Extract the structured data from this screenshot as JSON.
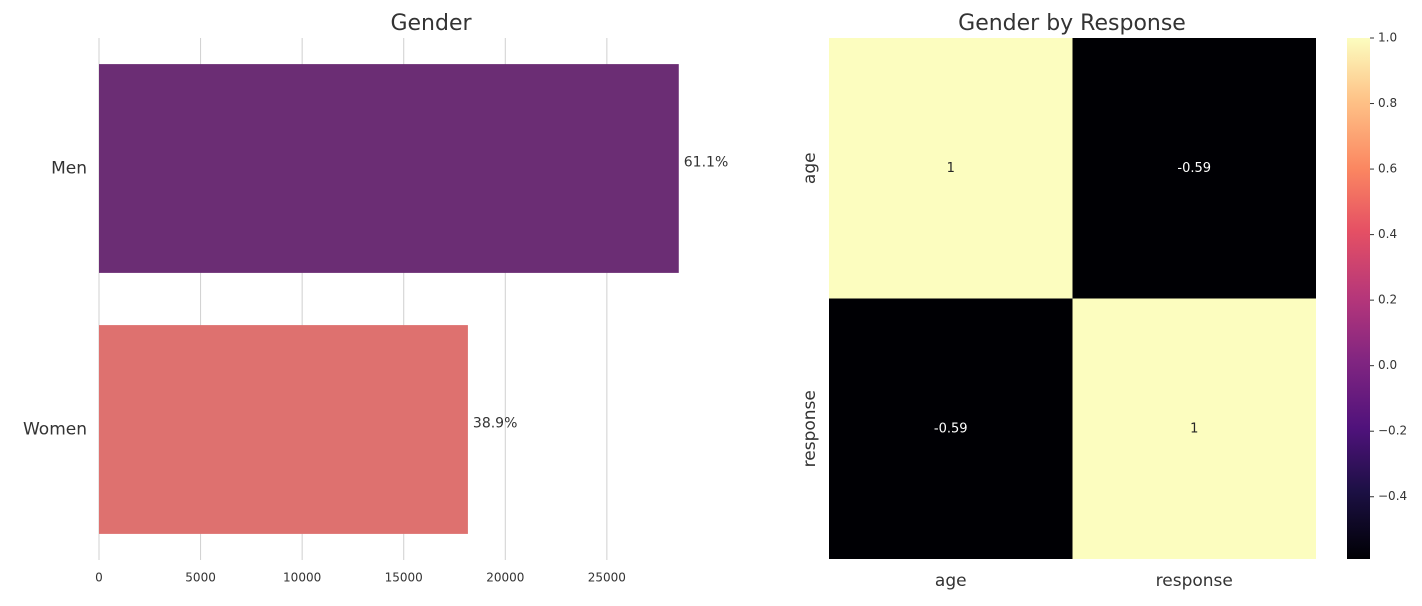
{
  "chart_data": [
    {
      "type": "barh",
      "title": "Gender",
      "categories": [
        "Men",
        "Women"
      ],
      "values": [
        28540,
        18160
      ],
      "colors": [
        "#6b2d74",
        "#de716f"
      ],
      "annotations": [
        "61.1%",
        "38.9%"
      ],
      "xlim": [
        0,
        28600
      ],
      "xticks": [
        0,
        5000,
        10000,
        15000,
        20000,
        25000
      ],
      "grid": true
    },
    {
      "type": "heatmap",
      "title": "Gender by Response",
      "x": [
        "age",
        "response"
      ],
      "y": [
        "age",
        "response"
      ],
      "values": [
        [
          1,
          -0.59
        ],
        [
          -0.59,
          1
        ]
      ],
      "colormap": "magma",
      "clim": [
        -0.59,
        1
      ],
      "cticks": [
        {
          "value": -0.4,
          "label": "−0.4"
        },
        {
          "value": -0.2,
          "label": "−0.2"
        },
        0.0,
        0.2,
        0.4,
        0.6,
        0.8,
        1.0
      ]
    }
  ]
}
